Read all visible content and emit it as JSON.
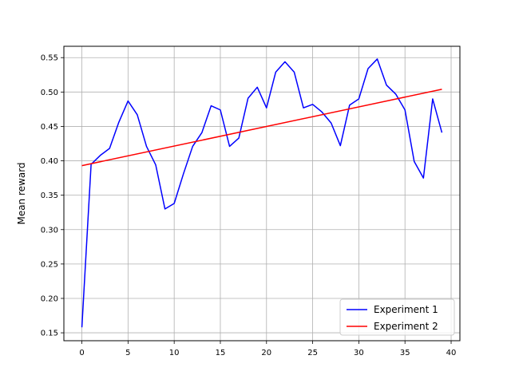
{
  "chart_data": {
    "type": "line",
    "title": "",
    "xlabel": "",
    "ylabel": "Mean reward",
    "xlim": [
      -1.95,
      40.95
    ],
    "ylim": [
      0.1385,
      0.5665
    ],
    "xticks": [
      0,
      5,
      10,
      15,
      20,
      25,
      30,
      35,
      40
    ],
    "yticks": [
      0.15,
      0.2,
      0.25,
      0.3,
      0.35,
      0.4,
      0.45,
      0.5,
      0.55
    ],
    "grid": true,
    "legend_position": "lower-right",
    "series": [
      {
        "name": "Experiment 1",
        "color": "#0000ff",
        "x": [
          0,
          1,
          2,
          3,
          4,
          5,
          6,
          7,
          8,
          9,
          10,
          11,
          12,
          13,
          14,
          15,
          16,
          17,
          18,
          19,
          20,
          21,
          22,
          23,
          24,
          25,
          26,
          27,
          28,
          29,
          30,
          31,
          32,
          33,
          34,
          35,
          36,
          37,
          38,
          39
        ],
        "values": [
          0.158,
          0.395,
          0.408,
          0.418,
          0.456,
          0.487,
          0.467,
          0.421,
          0.394,
          0.33,
          0.338,
          0.381,
          0.421,
          0.441,
          0.48,
          0.474,
          0.421,
          0.433,
          0.491,
          0.507,
          0.477,
          0.529,
          0.544,
          0.529,
          0.477,
          0.482,
          0.471,
          0.455,
          0.422,
          0.481,
          0.49,
          0.534,
          0.548,
          0.51,
          0.497,
          0.474,
          0.399,
          0.375,
          0.49,
          0.441
        ]
      },
      {
        "name": "Experiment 2",
        "color": "#ff0000",
        "x": [
          0,
          39
        ],
        "values": [
          0.393,
          0.504
        ]
      }
    ]
  }
}
